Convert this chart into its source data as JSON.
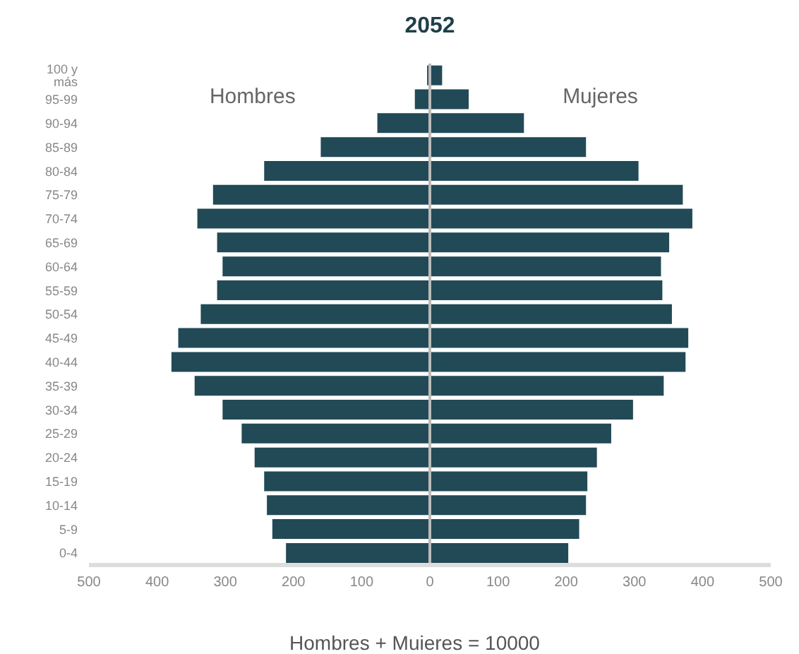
{
  "chart_data": {
    "type": "bar",
    "orientation": "horizontal",
    "stacked": true,
    "title": "2052",
    "categories": [
      "100 y más",
      "95-99",
      "90-94",
      "85-89",
      "80-84",
      "75-79",
      "70-74",
      "65-69",
      "60-64",
      "55-59",
      "50-54",
      "45-49",
      "40-44",
      "35-39",
      "30-34",
      "25-29",
      "20-24",
      "15-19",
      "10-14",
      "5-9",
      "0-4"
    ],
    "series": [
      {
        "name": "Hombres",
        "color": "#214a56",
        "values": [
          -4,
          -22,
          -77,
          -160,
          -243,
          -318,
          -341,
          -312,
          -304,
          -312,
          -336,
          -369,
          -379,
          -345,
          -304,
          -276,
          -257,
          -243,
          -239,
          -231,
          -211
        ]
      },
      {
        "name": "Mujeres",
        "color": "#214a56",
        "values": [
          18,
          57,
          138,
          229,
          306,
          371,
          385,
          351,
          339,
          341,
          355,
          379,
          375,
          343,
          298,
          266,
          245,
          231,
          229,
          219,
          203
        ]
      }
    ],
    "xlim": [
      -500,
      500
    ],
    "xticks": [
      {
        "value": -500,
        "label": "500"
      },
      {
        "value": -400,
        "label": "400"
      },
      {
        "value": -300,
        "label": "300"
      },
      {
        "value": -200,
        "label": "200"
      },
      {
        "value": -100,
        "label": "100"
      },
      0,
      100,
      200,
      300,
      400,
      500
    ],
    "ref_lines": [
      {
        "axis": "x",
        "value": 0,
        "color": "#bbbbbb"
      }
    ],
    "annotations": [
      "Hombres + Muieres = 10000"
    ],
    "grid": false,
    "legend": false
  }
}
